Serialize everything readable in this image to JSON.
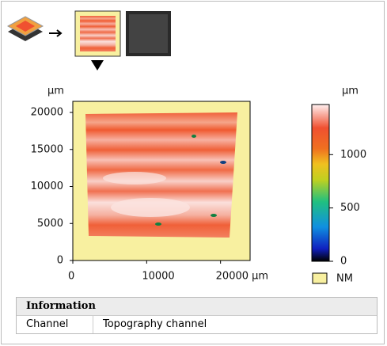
{
  "plot": {
    "y_unit": "µm",
    "xlim": [
      0,
      24000
    ],
    "ylim": [
      0,
      21500
    ],
    "xticks": [
      0,
      10000,
      {
        "value": 20000,
        "label": "20000 µm"
      }
    ],
    "yticks": [
      0,
      5000,
      10000,
      15000,
      20000
    ]
  },
  "colorbar": {
    "unit": "µm",
    "lim": [
      0,
      1470
    ],
    "ticks": [
      0,
      500,
      1000
    ],
    "nm_label": "NM"
  },
  "info": {
    "title": "Information",
    "rows": [
      [
        "Channel",
        "Topography channel"
      ]
    ]
  }
}
